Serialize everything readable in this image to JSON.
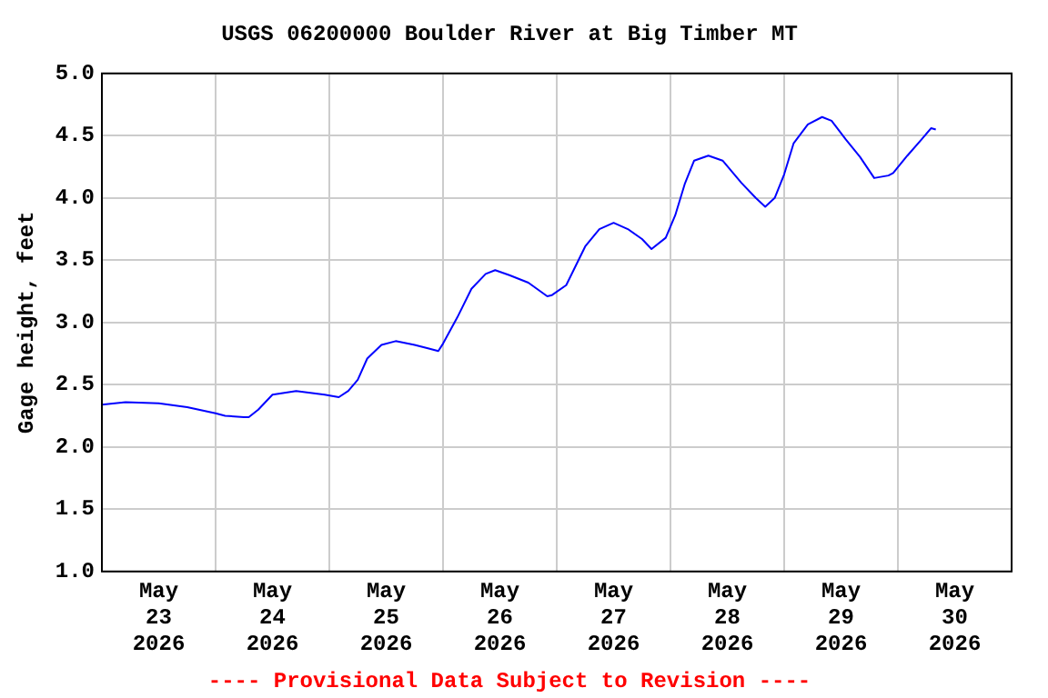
{
  "chart_data": {
    "type": "line",
    "title": "USGS 06200000 Boulder River at Big Timber MT",
    "ylabel": "Gage height, feet",
    "x": [
      "2026-05-23T00:00",
      "2026-05-23T05:00",
      "2026-05-23T12:00",
      "2026-05-23T18:00",
      "2026-05-24T00:00",
      "2026-05-24T02:00",
      "2026-05-24T06:00",
      "2026-05-24T07:00",
      "2026-05-24T09:00",
      "2026-05-24T12:00",
      "2026-05-24T17:00",
      "2026-05-24T23:00",
      "2026-05-25T02:00",
      "2026-05-25T04:00",
      "2026-05-25T06:00",
      "2026-05-25T08:00",
      "2026-05-25T11:00",
      "2026-05-25T14:00",
      "2026-05-25T18:00",
      "2026-05-25T21:00",
      "2026-05-25T23:00",
      "2026-05-26T00:00",
      "2026-05-26T03:00",
      "2026-05-26T06:00",
      "2026-05-26T09:00",
      "2026-05-26T11:00",
      "2026-05-26T14:00",
      "2026-05-26T18:00",
      "2026-05-26T22:00",
      "2026-05-26T23:00",
      "2026-05-27T02:00",
      "2026-05-27T06:00",
      "2026-05-27T09:00",
      "2026-05-27T12:00",
      "2026-05-27T15:00",
      "2026-05-27T18:00",
      "2026-05-27T20:00",
      "2026-05-27T23:00",
      "2026-05-28T01:00",
      "2026-05-28T03:00",
      "2026-05-28T05:00",
      "2026-05-28T08:00",
      "2026-05-28T11:00",
      "2026-05-28T15:00",
      "2026-05-28T18:00",
      "2026-05-28T20:00",
      "2026-05-28T22:00",
      "2026-05-29T00:00",
      "2026-05-29T02:00",
      "2026-05-29T05:00",
      "2026-05-29T08:00",
      "2026-05-29T10:00",
      "2026-05-29T13:00",
      "2026-05-29T16:00",
      "2026-05-29T19:00",
      "2026-05-29T22:00",
      "2026-05-29T23:00",
      "2026-05-30T02:00",
      "2026-05-30T05:00",
      "2026-05-30T07:00",
      "2026-05-30T08:00"
    ],
    "series": [
      {
        "color": "#0000ff",
        "values": [
          2.34,
          2.36,
          2.35,
          2.32,
          2.27,
          2.25,
          2.24,
          2.24,
          2.3,
          2.42,
          2.45,
          2.42,
          2.4,
          2.45,
          2.54,
          2.71,
          2.82,
          2.85,
          2.82,
          2.79,
          2.77,
          2.83,
          3.04,
          3.27,
          3.39,
          3.42,
          3.38,
          3.32,
          3.21,
          3.22,
          3.3,
          3.61,
          3.75,
          3.8,
          3.75,
          3.67,
          3.59,
          3.68,
          3.86,
          4.11,
          4.3,
          4.34,
          4.3,
          4.12,
          4.0,
          3.93,
          4.0,
          4.19,
          4.44,
          4.59,
          4.65,
          4.62,
          4.47,
          4.33,
          4.16,
          4.18,
          4.2,
          4.34,
          4.47,
          4.56,
          4.55
        ]
      }
    ],
    "xlim": [
      "2026-05-23T00:00",
      "2026-05-31T00:00"
    ],
    "xticks": [
      {
        "value": "2026-05-23T12:00",
        "label": "May 23 2026"
      },
      {
        "value": "2026-05-24T00:00",
        "label": null
      },
      {
        "value": "2026-05-24T12:00",
        "label": "May 24 2026"
      },
      {
        "value": "2026-05-25T00:00",
        "label": null
      },
      {
        "value": "2026-05-25T12:00",
        "label": "May 25 2026"
      },
      {
        "value": "2026-05-26T00:00",
        "label": null
      },
      {
        "value": "2026-05-26T12:00",
        "label": "May 26 2026"
      },
      {
        "value": "2026-05-27T00:00",
        "label": null
      },
      {
        "value": "2026-05-27T12:00",
        "label": "May 27 2026"
      },
      {
        "value": "2026-05-28T00:00",
        "label": null
      },
      {
        "value": "2026-05-28T12:00",
        "label": "May 28 2026"
      },
      {
        "value": "2026-05-29T00:00",
        "label": null
      },
      {
        "value": "2026-05-29T12:00",
        "label": "May 29 2026"
      },
      {
        "value": "2026-05-30T00:00",
        "label": null
      },
      {
        "value": "2026-05-30T12:00",
        "label": "May 30 2026"
      }
    ],
    "ylim": [
      1.0,
      5.0
    ],
    "yticks": [
      {
        "value": 1.0,
        "label": "1.0"
      },
      {
        "value": 1.5,
        "label": "1.5"
      },
      {
        "value": 2.0,
        "label": "2.0"
      },
      {
        "value": 2.5,
        "label": "2.5"
      },
      {
        "value": 3.0,
        "label": "3.0"
      },
      {
        "value": 3.5,
        "label": "3.5"
      },
      {
        "value": 4.0,
        "label": "4.0"
      },
      {
        "value": 4.5,
        "label": "4.5"
      },
      {
        "value": 5.0,
        "label": "5.0"
      }
    ],
    "grid": true,
    "legend": false,
    "marker": "none",
    "line_style": "solid",
    "annotations": [
      "---- Provisional Data Subject to Revision ----"
    ]
  }
}
